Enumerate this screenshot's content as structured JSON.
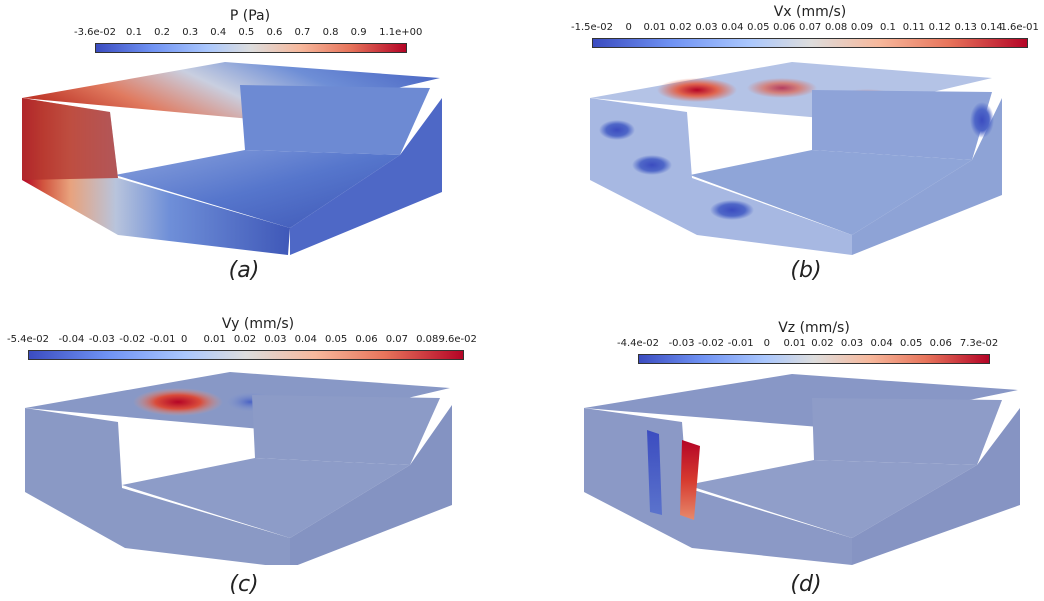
{
  "panels": [
    {
      "id": "a",
      "caption": "(a)",
      "colorbar": {
        "title": "P (Pa)",
        "ticks": [
          "-3.6e-02",
          "0.1",
          "0.2",
          "0.3",
          "0.4",
          "0.5",
          "0.6",
          "0.7",
          "0.8",
          "0.9",
          "1.1e+00"
        ]
      }
    },
    {
      "id": "b",
      "caption": "(b)",
      "colorbar": {
        "title": "Vx (mm/s)",
        "ticks": [
          "-1.5e-02",
          "0",
          "0.01",
          "0.02",
          "0.03",
          "0.04",
          "0.05",
          "0.06",
          "0.07",
          "0.08",
          "0.09",
          "0.1",
          "0.11",
          "0.12",
          "0.13",
          "0.14",
          "1.6e-01"
        ]
      }
    },
    {
      "id": "c",
      "caption": "(c)",
      "colorbar": {
        "title": "Vy (mm/s)",
        "ticks": [
          "-5.4e-02",
          "-0.04",
          "-0.03",
          "-0.02",
          "-0.01",
          "0",
          "0.01",
          "0.02",
          "0.03",
          "0.04",
          "0.05",
          "0.06",
          "0.07",
          "0.08",
          "9.6e-02"
        ]
      }
    },
    {
      "id": "d",
      "caption": "(d)",
      "colorbar": {
        "title": "Vz (mm/s)",
        "ticks": [
          "-4.4e-02",
          "-0.03",
          "-0.02",
          "-0.01",
          "0",
          "0.01",
          "0.02",
          "0.03",
          "0.04",
          "0.05",
          "0.06",
          "7.3e-02"
        ]
      }
    }
  ],
  "colors": {
    "low": "#3b4cc0",
    "mid": "#dddddd",
    "high": "#b40426"
  }
}
